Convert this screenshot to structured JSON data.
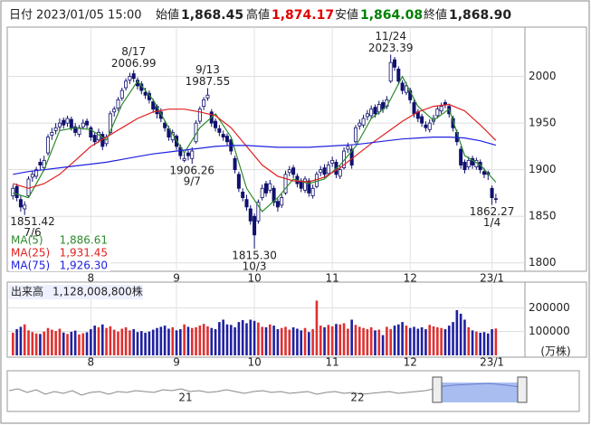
{
  "header": {
    "date_label": "日付",
    "date": "2023/01/05 15:00",
    "open_label": "始値",
    "open": "1,868.45",
    "high_label": "高値",
    "high": "1,874.17",
    "low_label": "安値",
    "low": "1,864.08",
    "close_label": "終値",
    "close": "1,868.90"
  },
  "chart_data": [
    {
      "type": "candlestick",
      "up_color": "#ffffff",
      "down_color": "#10106e",
      "line_color": "#10106e",
      "grid": true,
      "xlim": [
        -1,
        131
      ],
      "xticks": [
        {
          "value": 20,
          "label": "8"
        },
        {
          "value": 42,
          "label": "9"
        },
        {
          "value": 62,
          "label": "10"
        },
        {
          "value": 82,
          "label": "11"
        },
        {
          "value": 102,
          "label": "12"
        },
        {
          "value": 123,
          "label": "23/1"
        }
      ],
      "ylim": [
        1791,
        2053
      ],
      "yticks": [
        1800,
        1850,
        1900,
        1950,
        2000
      ],
      "ohlc": [
        [
          1872,
          1884,
          1868,
          1880
        ],
        [
          1882,
          1885,
          1866,
          1870
        ],
        [
          1868,
          1872,
          1855,
          1860
        ],
        [
          1858,
          1866,
          1851.42,
          1862
        ],
        [
          1872,
          1893,
          1870,
          1890
        ],
        [
          1892,
          1899,
          1887,
          1895
        ],
        [
          1893,
          1903,
          1890,
          1900
        ],
        [
          1908,
          1912,
          1900,
          1905
        ],
        [
          1902,
          1915,
          1899,
          1910
        ],
        [
          1918,
          1938,
          1915,
          1935
        ],
        [
          1937,
          1945,
          1932,
          1940
        ],
        [
          1942,
          1950,
          1938,
          1945
        ],
        [
          1946,
          1955,
          1942,
          1950
        ],
        [
          1953,
          1956,
          1944,
          1948
        ],
        [
          1950,
          1958,
          1946,
          1955
        ],
        [
          1954,
          1957,
          1942,
          1945
        ],
        [
          1946,
          1950,
          1936,
          1940
        ],
        [
          1938,
          1948,
          1935,
          1945
        ],
        [
          1946,
          1954,
          1943,
          1950
        ],
        [
          1952,
          1955,
          1944,
          1948
        ],
        [
          1945,
          1947,
          1931,
          1935
        ],
        [
          1937,
          1940,
          1926,
          1930
        ],
        [
          1932,
          1944,
          1929,
          1940
        ],
        [
          1938,
          1941,
          1921,
          1925
        ],
        [
          1928,
          1938,
          1925,
          1935
        ],
        [
          1940,
          1963,
          1938,
          1960
        ],
        [
          1962,
          1968,
          1957,
          1965
        ],
        [
          1966,
          1978,
          1963,
          1975
        ],
        [
          1977,
          1988,
          1974,
          1985
        ],
        [
          1988,
          1998,
          1985,
          1995
        ],
        [
          1996,
          2004,
          1992,
          2000
        ],
        [
          2003,
          2006.99,
          1994,
          1998
        ],
        [
          1996,
          1999,
          1986,
          1990
        ],
        [
          1992,
          1995,
          1981,
          1985
        ],
        [
          1983,
          1988,
          1976,
          1980
        ],
        [
          1982,
          1985,
          1971,
          1975
        ],
        [
          1973,
          1976,
          1961,
          1965
        ],
        [
          1968,
          1970,
          1955,
          1960
        ],
        [
          1962,
          1966,
          1951,
          1955
        ],
        [
          1950,
          1953,
          1941,
          1945
        ],
        [
          1944,
          1947,
          1931,
          1935
        ],
        [
          1932,
          1943,
          1929,
          1940
        ],
        [
          1936,
          1938,
          1921,
          1925
        ],
        [
          1924,
          1927,
          1911,
          1915
        ],
        [
          1910,
          1918,
          1908,
          1912
        ],
        [
          1918,
          1921,
          1910,
          1915
        ],
        [
          1912,
          1924,
          1906.26,
          1920
        ],
        [
          1930,
          1953,
          1928,
          1950
        ],
        [
          1952,
          1968,
          1949,
          1965
        ],
        [
          1968,
          1978,
          1964,
          1975
        ],
        [
          1977,
          1987.55,
          1974,
          1980
        ],
        [
          1962,
          1965,
          1946,
          1950
        ],
        [
          1952,
          1955,
          1941,
          1945
        ],
        [
          1944,
          1948,
          1936,
          1940
        ],
        [
          1938,
          1942,
          1931,
          1935
        ],
        [
          1936,
          1939,
          1926,
          1930
        ],
        [
          1932,
          1934,
          1916,
          1920
        ],
        [
          1912,
          1915,
          1896,
          1900
        ],
        [
          1895,
          1898,
          1876,
          1880
        ],
        [
          1876,
          1880,
          1866,
          1870
        ],
        [
          1868,
          1873,
          1856,
          1860
        ],
        [
          1858,
          1862,
          1841,
          1845
        ],
        [
          1850,
          1853,
          1815.3,
          1830
        ],
        [
          1845,
          1868,
          1842,
          1865
        ],
        [
          1870,
          1884,
          1867,
          1880
        ],
        [
          1885,
          1888,
          1871,
          1875
        ],
        [
          1878,
          1889,
          1875,
          1885
        ],
        [
          1880,
          1883,
          1861,
          1865
        ],
        [
          1866,
          1869,
          1855,
          1860
        ],
        [
          1862,
          1874,
          1859,
          1870
        ],
        [
          1875,
          1899,
          1873,
          1895
        ],
        [
          1897,
          1904,
          1893,
          1900
        ],
        [
          1902,
          1905,
          1891,
          1895
        ],
        [
          1893,
          1896,
          1881,
          1885
        ],
        [
          1888,
          1891,
          1876,
          1880
        ],
        [
          1878,
          1893,
          1875,
          1890
        ],
        [
          1888,
          1891,
          1871,
          1875
        ],
        [
          1872,
          1884,
          1869,
          1880
        ],
        [
          1882,
          1898,
          1880,
          1895
        ],
        [
          1897,
          1904,
          1893,
          1900
        ],
        [
          1902,
          1906,
          1891,
          1895
        ],
        [
          1896,
          1909,
          1893,
          1905
        ],
        [
          1907,
          1914,
          1903,
          1910
        ],
        [
          1908,
          1911,
          1891,
          1895
        ],
        [
          1893,
          1904,
          1890,
          1900
        ],
        [
          1902,
          1924,
          1900,
          1920
        ],
        [
          1922,
          1929,
          1918,
          1925
        ],
        [
          1922,
          1926,
          1901,
          1905
        ],
        [
          1930,
          1948,
          1928,
          1945
        ],
        [
          1947,
          1954,
          1943,
          1950
        ],
        [
          1948,
          1959,
          1945,
          1955
        ],
        [
          1957,
          1964,
          1953,
          1960
        ],
        [
          1958,
          1969,
          1955,
          1965
        ],
        [
          1967,
          1970,
          1956,
          1960
        ],
        [
          1962,
          1974,
          1959,
          1970
        ],
        [
          1972,
          1975,
          1961,
          1965
        ],
        [
          1968,
          1979,
          1965,
          1975
        ],
        [
          1995,
          2023.39,
          1993,
          2015
        ],
        [
          2018,
          2021,
          2006,
          2010
        ],
        [
          2008,
          2011,
          1991,
          1995
        ],
        [
          1993,
          1996,
          1981,
          1985
        ],
        [
          1983,
          1994,
          1980,
          1990
        ],
        [
          1985,
          1988,
          1971,
          1975
        ],
        [
          1972,
          1975,
          1956,
          1960
        ],
        [
          1962,
          1965,
          1951,
          1955
        ],
        [
          1957,
          1960,
          1946,
          1950
        ],
        [
          1948,
          1952,
          1941,
          1945
        ],
        [
          1943,
          1954,
          1940,
          1950
        ],
        [
          1952,
          1959,
          1948,
          1955
        ],
        [
          1958,
          1969,
          1955,
          1965
        ],
        [
          1963,
          1972,
          1960,
          1968
        ],
        [
          1972,
          1975,
          1966,
          1970
        ],
        [
          1968,
          1971,
          1956,
          1960
        ],
        [
          1955,
          1958,
          1941,
          1945
        ],
        [
          1940,
          1943,
          1926,
          1930
        ],
        [
          1922,
          1925,
          1901,
          1905
        ],
        [
          1908,
          1911,
          1896,
          1900
        ],
        [
          1903,
          1914,
          1900,
          1910
        ],
        [
          1912,
          1915,
          1901,
          1905
        ],
        [
          1903,
          1913,
          1900,
          1910
        ],
        [
          1908,
          1911,
          1896,
          1900
        ],
        [
          1898,
          1902,
          1891,
          1895
        ],
        [
          1897,
          1899,
          1889,
          1895
        ],
        [
          1880,
          1883,
          1862.27,
          1870
        ],
        [
          1868.45,
          1874.17,
          1864.08,
          1868.9
        ]
      ],
      "series": [
        {
          "name": "MA(5)",
          "color": "#2e8b2e",
          "legend_label": "1,886.61",
          "x": [
            0,
            4,
            8,
            12,
            16,
            20,
            24,
            28,
            32,
            36,
            40,
            44,
            48,
            52,
            56,
            60,
            64,
            68,
            72,
            76,
            80,
            84,
            88,
            92,
            96,
            100,
            104,
            108,
            112,
            116,
            120,
            124
          ],
          "values": [
            1875,
            1870,
            1900,
            1942,
            1945,
            1943,
            1932,
            1970,
            1995,
            1975,
            1945,
            1918,
            1945,
            1960,
            1935,
            1880,
            1855,
            1870,
            1890,
            1885,
            1890,
            1905,
            1925,
            1955,
            1968,
            2000,
            1968,
            1953,
            1965,
            1915,
            1905,
            1886.61
          ]
        },
        {
          "name": "MA(25)",
          "color": "#e02020",
          "legend_label": "1,931.45",
          "x": [
            0,
            4,
            8,
            12,
            16,
            20,
            24,
            28,
            32,
            36,
            40,
            44,
            48,
            52,
            56,
            60,
            64,
            68,
            72,
            76,
            80,
            84,
            88,
            92,
            96,
            100,
            104,
            108,
            112,
            116,
            120,
            124
          ],
          "values": [
            1885,
            1880,
            1885,
            1895,
            1910,
            1925,
            1935,
            1945,
            1955,
            1962,
            1965,
            1965,
            1962,
            1958,
            1945,
            1925,
            1905,
            1893,
            1888,
            1887,
            1892,
            1902,
            1915,
            1928,
            1940,
            1952,
            1962,
            1968,
            1970,
            1963,
            1948,
            1931.45
          ]
        },
        {
          "name": "MA(75)",
          "color": "#2020e0",
          "legend_label": "1,926.30",
          "x": [
            0,
            4,
            8,
            12,
            16,
            20,
            24,
            28,
            32,
            36,
            40,
            44,
            48,
            52,
            56,
            60,
            64,
            68,
            72,
            76,
            80,
            84,
            88,
            92,
            96,
            100,
            104,
            108,
            112,
            116,
            120,
            124
          ],
          "values": [
            1895,
            1898,
            1900,
            1902,
            1904,
            1906,
            1908,
            1911,
            1914,
            1917,
            1919,
            1921,
            1923,
            1925,
            1926,
            1926,
            1925,
            1924,
            1924,
            1924,
            1925,
            1926,
            1927,
            1929,
            1931,
            1933,
            1934,
            1935,
            1935,
            1934,
            1931,
            1926.3
          ]
        }
      ],
      "annotations": [
        {
          "date": "7/6",
          "price": 1851.42
        },
        {
          "date": "8/17",
          "price": 2006.99
        },
        {
          "date": "9/7",
          "price": 1906.26
        },
        {
          "date": "9/13",
          "price": 1987.55
        },
        {
          "date": "10/3",
          "price": {
            "value": 1815.3,
            "label": "1815.30"
          }
        },
        {
          "date": "11/24",
          "price": 2023.39
        },
        {
          "date": "1/4",
          "price": 1862.27
        }
      ]
    },
    {
      "type": "bar",
      "title": "出来高",
      "value_label": "1,128,008,800株",
      "unit": "(万株)",
      "up_color": "#e03030",
      "down_color": "#2020a0",
      "grid": true,
      "xlim": [
        -1,
        131
      ],
      "xticks": [
        {
          "value": 20,
          "label": "8"
        },
        {
          "value": 42,
          "label": "9"
        },
        {
          "value": 62,
          "label": "10"
        },
        {
          "value": 82,
          "label": "11"
        },
        {
          "value": 102,
          "label": "12"
        },
        {
          "value": 123,
          "label": "23/1"
        }
      ],
      "ylim": [
        0,
        300000
      ],
      "yticks": [
        100000,
        200000
      ],
      "values": [
        95000,
        110000,
        120000,
        130000,
        105000,
        98000,
        92000,
        90000,
        100000,
        115000,
        108000,
        102000,
        112000,
        96000,
        90000,
        99000,
        104000,
        88000,
        93000,
        97000,
        110000,
        125000,
        118000,
        130000,
        115000,
        122000,
        108000,
        100000,
        112000,
        118000,
        105000,
        110000,
        98000,
        102000,
        95000,
        100000,
        108000,
        115000,
        120000,
        125000,
        112000,
        118000,
        105000,
        110000,
        130000,
        120000,
        115000,
        118000,
        125000,
        132000,
        122000,
        115000,
        110000,
        140000,
        150000,
        130000,
        128000,
        118000,
        140000,
        148000,
        135000,
        150000,
        145000,
        138000,
        120000,
        118000,
        130000,
        125000,
        110000,
        115000,
        120000,
        108000,
        118000,
        112000,
        105000,
        115000,
        98000,
        110000,
        230000,
        125000,
        118000,
        128000,
        122000,
        132000,
        130000,
        135000,
        112000,
        150000,
        128000,
        120000,
        115000,
        110000,
        118000,
        105000,
        108000,
        85000,
        120000,
        110000,
        125000,
        130000,
        140000,
        125000,
        115000,
        120000,
        112000,
        118000,
        110000,
        128000,
        122000,
        118000,
        115000,
        110000,
        125000,
        140000,
        190000,
        175000,
        150000,
        118000,
        105000,
        100000,
        95000,
        98000,
        92000,
        110000,
        112800.88
      ]
    }
  ],
  "navigator": {
    "labels": [
      "21",
      "22"
    ]
  }
}
